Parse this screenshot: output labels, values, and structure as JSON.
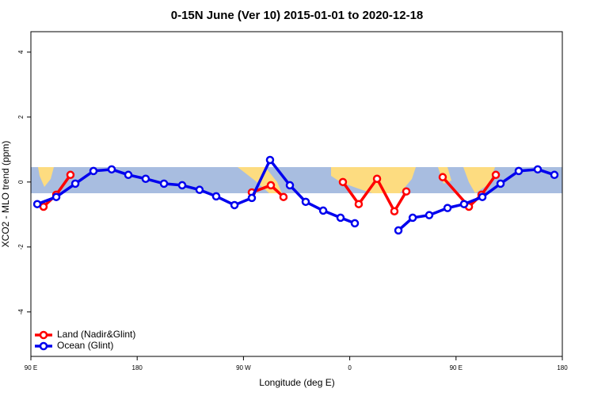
{
  "chart_data": {
    "type": "line",
    "title": "0-15N June (Ver 10)   2015-01-01 to 2020-12-18",
    "x_label": "Longitude (deg E)",
    "y_label": "XCO2 - MLO trend (ppm)",
    "xlim": [
      90,
      540
    ],
    "ylim": [
      -5.37,
      4.63
    ],
    "xticks": [
      {
        "value": 90,
        "label": "90 E"
      },
      {
        "value": 180,
        "label": "180"
      },
      {
        "value": 270,
        "label": "90 W"
      },
      {
        "value": 360,
        "label": "0"
      },
      {
        "value": 450,
        "label": "90 E"
      },
      {
        "value": 540,
        "label": "180"
      }
    ],
    "yticks": [
      -4,
      -2,
      0,
      2,
      4
    ],
    "legend": "lower left",
    "series": [
      {
        "name": "Land (Nadir&Glint)",
        "color": "#ff0000",
        "x": [
          100.7,
          111.5,
          123.5,
          null,
          277.1,
          293.2,
          303.9,
          null,
          354.2,
          367.6,
          383.1,
          397.8,
          407.9,
          null,
          438.7,
          460.9,
          471.6,
          483.7
        ],
        "values": [
          -0.76,
          -0.39,
          0.22,
          null,
          -0.32,
          -0.1,
          -0.46,
          null,
          0,
          -0.68,
          0.1,
          -0.9,
          -0.29,
          null,
          0.15,
          -0.76,
          -0.39,
          0.22
        ]
      },
      {
        "name": "Ocean (Glint)",
        "color": "#0000ee",
        "x": [
          95.4,
          111.5,
          127.6,
          143,
          158.4,
          172.5,
          187.2,
          202.7,
          218.1,
          232.8,
          246.9,
          262.4,
          277.1,
          292.5,
          309.3,
          322.7,
          337.5,
          352.2,
          364.3,
          null,
          401.2,
          413.3,
          427.3,
          442.8,
          456.8,
          472.3,
          487.7,
          503.1,
          519.2,
          533.3
        ],
        "values": [
          -0.68,
          -0.46,
          -0.05,
          0.34,
          0.39,
          0.22,
          0.1,
          -0.05,
          -0.1,
          -0.24,
          -0.44,
          -0.71,
          -0.49,
          0.68,
          -0.1,
          -0.61,
          -0.88,
          -1.1,
          -1.27,
          null,
          -1.49,
          -1.1,
          -1.02,
          -0.8,
          -0.68,
          -0.46,
          -0.05,
          0.34,
          0.39,
          0.22
        ]
      }
    ]
  }
}
